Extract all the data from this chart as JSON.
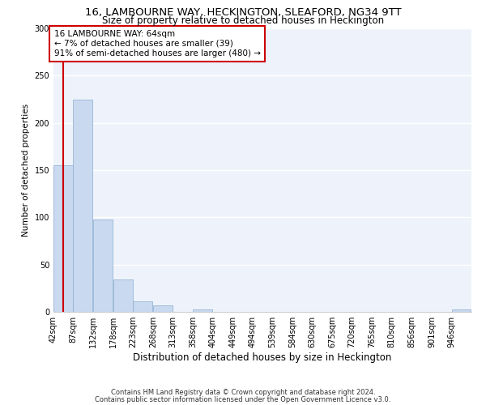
{
  "title1": "16, LAMBOURNE WAY, HECKINGTON, SLEAFORD, NG34 9TT",
  "title2": "Size of property relative to detached houses in Heckington",
  "xlabel": "Distribution of detached houses by size in Heckington",
  "ylabel": "Number of detached properties",
  "bar_color": "#c9d9f0",
  "bar_edgecolor": "#8aacce",
  "highlight_line_color": "#cc0000",
  "background_color": "#eef3fb",
  "annotation_box_color": "#ffffff",
  "annotation_box_edgecolor": "#cc0000",
  "annotation_line1": "16 LAMBOURNE WAY: 64sqm",
  "annotation_line2": "← 7% of detached houses are smaller (39)",
  "annotation_line3": "91% of semi-detached houses are larger (480) →",
  "property_size": 64,
  "bins": [
    42,
    87,
    132,
    178,
    223,
    268,
    313,
    358,
    404,
    449,
    494,
    539,
    584,
    630,
    675,
    720,
    765,
    810,
    856,
    901,
    946
  ],
  "bin_labels": [
    "42sqm",
    "87sqm",
    "132sqm",
    "178sqm",
    "223sqm",
    "268sqm",
    "313sqm",
    "358sqm",
    "404sqm",
    "449sqm",
    "494sqm",
    "539sqm",
    "584sqm",
    "630sqm",
    "675sqm",
    "720sqm",
    "765sqm",
    "810sqm",
    "856sqm",
    "901sqm",
    "946sqm"
  ],
  "bar_heights": [
    155,
    225,
    98,
    34,
    11,
    7,
    0,
    3,
    0,
    0,
    0,
    0,
    0,
    0,
    0,
    0,
    0,
    0,
    0,
    0,
    3
  ],
  "ylim": [
    0,
    300
  ],
  "yticks": [
    0,
    50,
    100,
    150,
    200,
    250,
    300
  ],
  "footnote1": "Contains HM Land Registry data © Crown copyright and database right 2024.",
  "footnote2": "Contains public sector information licensed under the Open Government Licence v3.0.",
  "title1_fontsize": 9.5,
  "title2_fontsize": 8.5,
  "xlabel_fontsize": 8.5,
  "ylabel_fontsize": 7.5,
  "tick_fontsize": 7,
  "annotation_fontsize": 7.5,
  "footnote_fontsize": 6
}
